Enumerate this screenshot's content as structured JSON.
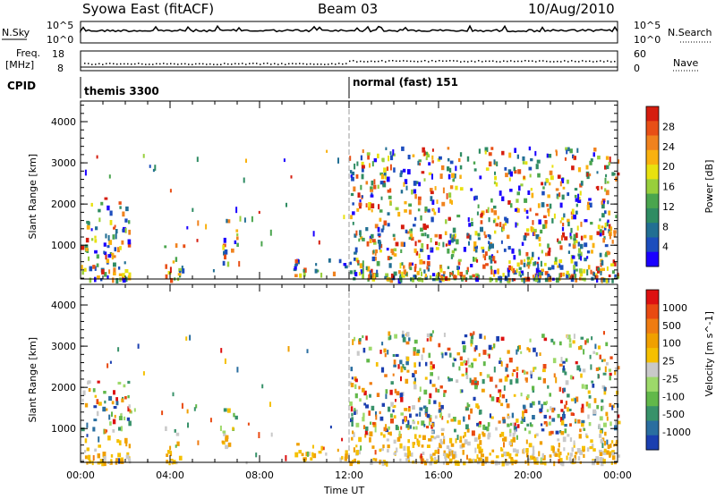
{
  "header": {
    "station": "Syowa East (fitACF)",
    "beam": "Beam 03",
    "date": "10/Aug/2010"
  },
  "status_panels": {
    "nsky_label": "N.Sky",
    "nsearch_label": "N.Search",
    "freq_label_1": "Freq.",
    "freq_label_2": "[MHz]",
    "nave_label": "Nave",
    "cpid_label": "CPID",
    "noise_ticks_left": [
      "10^5",
      "10^0"
    ],
    "noise_ticks_right": [
      "10^5",
      "10^0"
    ],
    "freq_ticks_left": [
      "18",
      "8"
    ],
    "nave_ticks_right": [
      "60",
      "0"
    ],
    "cpid_segments": [
      {
        "name": "themis 3300",
        "start_hour": 0
      },
      {
        "name": "normal (fast) 151",
        "start_hour": 12
      }
    ]
  },
  "chart_data": [
    {
      "type": "heatmap",
      "title": "",
      "xlabel": "Time UT",
      "ylabel": "Slant Range [km]",
      "xlim_hours": [
        0,
        24
      ],
      "ylim_km": [
        180,
        4500
      ],
      "x_ticks": [
        "00:00",
        "04:00",
        "08:00",
        "12:00",
        "16:00",
        "20:00",
        "00:00"
      ],
      "y_ticks": [
        1000,
        2000,
        3000,
        4000
      ],
      "colorbar": {
        "label": "Power [dB]",
        "ticks": [
          "28",
          "24",
          "20",
          "16",
          "12",
          "8",
          "4"
        ],
        "colors": [
          "#1b00ff",
          "#1c4dbd",
          "#226f93",
          "#2f8c63",
          "#4aa54e",
          "#98cf3c",
          "#e8e10f",
          "#f9b10f",
          "#f0821e",
          "#e84f16",
          "#d51d0f"
        ]
      },
      "regions": [
        {
          "t0": 0.0,
          "t1": 2.2,
          "r0": 200,
          "r1": 2200,
          "level": "mixed"
        },
        {
          "t0": 3.7,
          "t1": 4.6,
          "r0": 200,
          "r1": 1100,
          "level": "mixed"
        },
        {
          "t0": 6.3,
          "t1": 7.0,
          "r0": 600,
          "r1": 1700,
          "level": "mixed"
        },
        {
          "t0": 9.5,
          "t1": 12.0,
          "r0": 300,
          "r1": 700,
          "level": "mixed"
        },
        {
          "t0": 12.0,
          "t1": 24.0,
          "r0": 200,
          "r1": 3400,
          "level": "mixed"
        }
      ]
    },
    {
      "type": "heatmap",
      "title": "",
      "xlabel": "Time UT",
      "ylabel": "Slant Range [km]",
      "xlim_hours": [
        0,
        24
      ],
      "ylim_km": [
        180,
        4500
      ],
      "x_ticks": [
        "00:00",
        "04:00",
        "08:00",
        "12:00",
        "16:00",
        "20:00",
        "00:00"
      ],
      "y_ticks": [
        1000,
        2000,
        3000,
        4000
      ],
      "colorbar": {
        "label": "Velocity [m s^-1]",
        "ticks": [
          "1000",
          "500",
          "100",
          "25",
          "-25",
          "-100",
          "-500",
          "-1000"
        ],
        "colors": [
          "#1b3fb0",
          "#2a6ea0",
          "#38926a",
          "#62b84a",
          "#9dd96a",
          "#c9c9c9",
          "#f5c000",
          "#f0a000",
          "#ef7c12",
          "#e94a12",
          "#dd1111"
        ]
      },
      "regions": [
        {
          "t0": 0.0,
          "t1": 2.2,
          "r0": 200,
          "r1": 2200,
          "level": "mixed"
        },
        {
          "t0": 3.7,
          "t1": 4.6,
          "r0": 200,
          "r1": 1100,
          "level": "mixed"
        },
        {
          "t0": 6.3,
          "t1": 7.0,
          "r0": 600,
          "r1": 1700,
          "level": "mixed"
        },
        {
          "t0": 9.5,
          "t1": 12.0,
          "r0": 300,
          "r1": 700,
          "level": "mixed"
        },
        {
          "t0": 12.0,
          "t1": 24.0,
          "r0": 200,
          "r1": 3400,
          "level": "mixed"
        }
      ]
    }
  ]
}
